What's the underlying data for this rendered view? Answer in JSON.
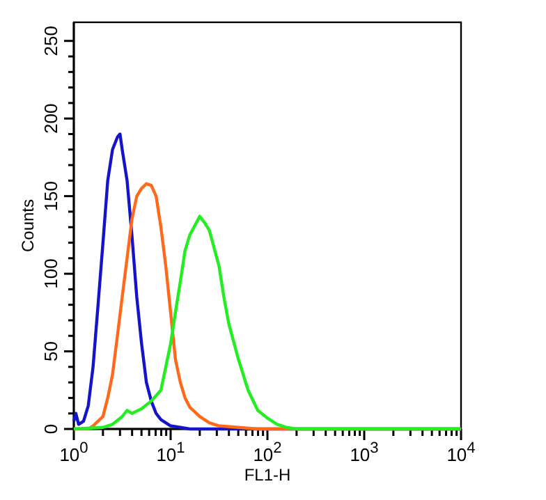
{
  "chart_data": {
    "type": "line",
    "xlabel": "FL1-H",
    "ylabel": "Counts",
    "log": "x",
    "xlim": [
      1,
      10000
    ],
    "ylim": [
      0,
      262
    ],
    "xticks": [
      {
        "value": 1,
        "label": "10$^{0}$"
      },
      {
        "value": 2,
        "label": null
      },
      {
        "value": 3,
        "label": null
      },
      {
        "value": 4,
        "label": null
      },
      {
        "value": 5,
        "label": null
      },
      {
        "value": 6,
        "label": null
      },
      {
        "value": 7,
        "label": null
      },
      {
        "value": 8,
        "label": null
      },
      {
        "value": 9,
        "label": null
      },
      {
        "value": 10,
        "label": "10$^{1}$"
      },
      {
        "value": 20,
        "label": null
      },
      {
        "value": 30,
        "label": null
      },
      {
        "value": 40,
        "label": null
      },
      {
        "value": 50,
        "label": null
      },
      {
        "value": 60,
        "label": null
      },
      {
        "value": 70,
        "label": null
      },
      {
        "value": 80,
        "label": null
      },
      {
        "value": 90,
        "label": null
      },
      {
        "value": 100,
        "label": "10$^{2}$"
      },
      {
        "value": 200,
        "label": null
      },
      {
        "value": 300,
        "label": null
      },
      {
        "value": 400,
        "label": null
      },
      {
        "value": 500,
        "label": null
      },
      {
        "value": 600,
        "label": null
      },
      {
        "value": 700,
        "label": null
      },
      {
        "value": 800,
        "label": null
      },
      {
        "value": 900,
        "label": null
      },
      {
        "value": 1000,
        "label": "10$^{3}$"
      },
      {
        "value": 2000,
        "label": null
      },
      {
        "value": 3000,
        "label": null
      },
      {
        "value": 4000,
        "label": null
      },
      {
        "value": 5000,
        "label": null
      },
      {
        "value": 6000,
        "label": null
      },
      {
        "value": 7000,
        "label": null
      },
      {
        "value": 8000,
        "label": null
      },
      {
        "value": 9000,
        "label": null
      },
      {
        "value": 10000,
        "label": "10$^{4}$"
      }
    ],
    "yticks": [
      0,
      {
        "value": 10,
        "label": null
      },
      {
        "value": 20,
        "label": null
      },
      {
        "value": 30,
        "label": null
      },
      {
        "value": 40,
        "label": null
      },
      50,
      {
        "value": 60,
        "label": null
      },
      {
        "value": 70,
        "label": null
      },
      {
        "value": 80,
        "label": null
      },
      {
        "value": 90,
        "label": null
      },
      100,
      {
        "value": 110,
        "label": null
      },
      {
        "value": 120,
        "label": null
      },
      {
        "value": 130,
        "label": null
      },
      {
        "value": 140,
        "label": null
      },
      150,
      {
        "value": 160,
        "label": null
      },
      {
        "value": 170,
        "label": null
      },
      {
        "value": 180,
        "label": null
      },
      {
        "value": 190,
        "label": null
      },
      200,
      {
        "value": 210,
        "label": null
      },
      {
        "value": 220,
        "label": null
      },
      {
        "value": 230,
        "label": null
      },
      {
        "value": 240,
        "label": null
      },
      250
    ],
    "grid": false,
    "series": [
      {
        "color": "#1414c8",
        "x": [
          1,
          1.05,
          1.12,
          1.26,
          1.41,
          1.58,
          1.78,
          2,
          2.24,
          2.51,
          2.82,
          3,
          3.16,
          3.55,
          3.98,
          4.47,
          5.01,
          5.62,
          6.31,
          7.08,
          7.94,
          8.91,
          10,
          12.6,
          15.8,
          20,
          10000
        ],
        "values": [
          5,
          10,
          3,
          5,
          15,
          40,
          80,
          120,
          160,
          180,
          188,
          190,
          180,
          160,
          125,
          85,
          55,
          30,
          18,
          10,
          6,
          4,
          2,
          1,
          0,
          0,
          0
        ]
      },
      {
        "color": "#ff6a1a",
        "x": [
          1,
          1.41,
          1.58,
          2,
          2.24,
          2.51,
          2.82,
          3.16,
          3.55,
          3.98,
          4.47,
          5.01,
          5.62,
          6.31,
          7.08,
          7.94,
          8.91,
          10,
          11.2,
          12.6,
          14.1,
          15.8,
          20,
          25.1,
          31.6,
          50.1,
          79.4,
          158,
          10000
        ],
        "values": [
          0,
          0,
          2,
          8,
          20,
          35,
          60,
          85,
          110,
          135,
          150,
          155,
          158,
          157,
          150,
          130,
          105,
          75,
          45,
          30,
          20,
          14,
          8,
          4,
          2,
          1,
          0,
          0,
          0
        ]
      },
      {
        "color": "#22ee22",
        "x": [
          1,
          2,
          2.51,
          3.16,
          3.55,
          3.98,
          5.01,
          6.31,
          7.94,
          8.91,
          10,
          11.2,
          12.6,
          14.1,
          15.8,
          20,
          22.4,
          25.1,
          31.6,
          35.5,
          39.8,
          50.1,
          63.1,
          79.4,
          100,
          126,
          158,
          200,
          10000
        ],
        "values": [
          0,
          1,
          3,
          8,
          12,
          10,
          13,
          18,
          25,
          40,
          55,
          75,
          95,
          115,
          125,
          137,
          133,
          128,
          105,
          85,
          68,
          45,
          25,
          12,
          7,
          3,
          1,
          0,
          0
        ]
      }
    ]
  }
}
